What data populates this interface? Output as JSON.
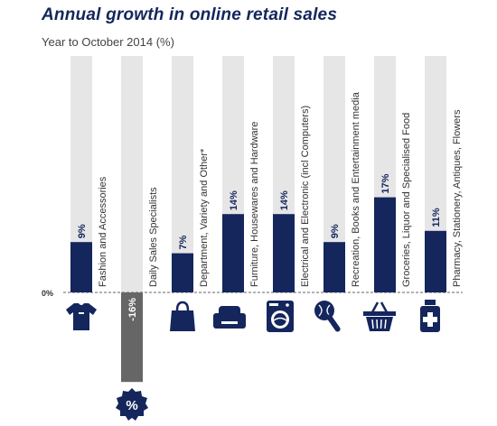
{
  "title": "Annual growth in online retail sales",
  "subtitle": "Year to October 2014 (%)",
  "colors": {
    "positive": "#14265c",
    "negative": "#666666",
    "track": "#e6e6e6",
    "title": "#14265c"
  },
  "chart_data": {
    "type": "bar",
    "title": "Annual growth in online retail sales",
    "subtitle": "Year to October 2014 (%)",
    "xlabel": "",
    "ylabel": "",
    "zero_label": "0%",
    "ylim": [
      -16,
      30
    ],
    "grid": false,
    "legend": "none",
    "categories": [
      "Fashion and Accessories",
      "Daily Sales Specialists",
      "Department, Variety and Other*",
      "Furniture, Housewares and Hardware",
      "Electrical and Electronic (incl Computers)",
      "Recreation, Books and Entertainment media",
      "Groceries, Liquor and Specialised Food",
      "Pharmacy, Stationery, Antiques, Flowers"
    ],
    "values": [
      9,
      -16,
      7,
      14,
      14,
      9,
      17,
      11
    ],
    "value_labels": [
      "9%",
      "-16%",
      "7%",
      "14%",
      "14%",
      "9%",
      "17%",
      "11%"
    ],
    "icons": [
      "shirt-icon",
      "percent-badge-icon",
      "shopping-bag-icon",
      "armchair-icon",
      "washing-machine-icon",
      "ball-and-bat-icon",
      "basket-icon",
      "medicine-bottle-icon"
    ]
  }
}
